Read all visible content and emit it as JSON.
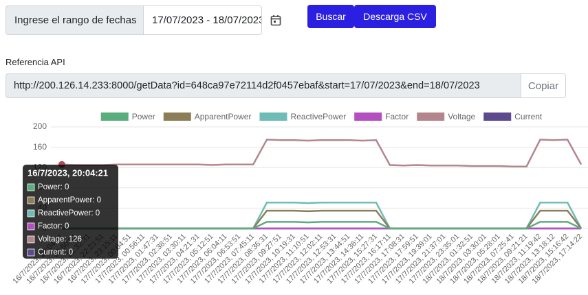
{
  "form": {
    "range_label": "Ingrese el rango de fechas",
    "range_value": "17/07/2023 - 18/07/2023",
    "search_button": "Buscar",
    "csv_button": "Descarga CSV",
    "api_label": "Referencia API",
    "api_url": "http://200.126.14.233:8000/getData?id=648ca97e72114d2f0457ebaf&start=17/07/2023&end=18/07/2023",
    "copy_button": "Copiar"
  },
  "chart_data": {
    "type": "line",
    "categories": [
      "16/7/2023, 20:04:21",
      "16/7/2023, 20:50:01",
      "16/7/2023, 21:32:31",
      "16/7/2023, 22:23:51",
      "16/7/2023, 23:15:11",
      "17/7/2023, 00:04:51",
      "17/7/2023, 00:56:11",
      "17/7/2023, 01:47:31",
      "17/7/2023, 02:38:51",
      "17/7/2023, 03:30:11",
      "17/7/2023, 04:21:31",
      "17/7/2023, 05:12:51",
      "17/7/2023, 06:04:11",
      "17/7/2023, 06:53:51",
      "17/7/2023, 07:45:11",
      "17/7/2023, 08:36:31",
      "17/7/2023, 09:27:51",
      "17/7/2023, 10:19:31",
      "17/7/2023, 11:10:51",
      "17/7/2023, 12:02:11",
      "17/7/2023, 12:53:31",
      "17/7/2023, 13:44:51",
      "17/7/2023, 14:36:11",
      "17/7/2023, 15:27:31",
      "17/7/2023, 16:17:11",
      "17/7/2023, 17:08:31",
      "17/7/2023, 17:59:51",
      "17/7/2023, 19:39:01",
      "17/7/2023, 21:37:01",
      "17/7/2023, 23:35:01",
      "18/7/2023, 01:32:51",
      "18/7/2023, 03:30:01",
      "18/7/2023, 05:28:01",
      "18/7/2023, 07:25:41",
      "18/7/2023, 09:21:21",
      "18/7/2023, 11:19:42",
      "18/7/2023, 13:18:12",
      "18/7/2023, 15:16:42",
      "18/7/2023, 17:14:22"
    ],
    "series": [
      {
        "name": "Power",
        "color": "#5aad7d",
        "values": [
          0,
          0,
          0,
          0,
          0,
          0,
          0,
          0,
          0,
          0,
          0,
          0,
          0,
          0,
          0,
          13,
          13,
          13,
          12,
          13,
          13,
          13,
          13,
          13,
          0,
          0,
          0,
          0,
          0,
          0,
          0,
          0,
          0,
          0,
          0,
          13,
          13,
          13,
          0
        ]
      },
      {
        "name": "ApparentPower",
        "color": "#8b7d56",
        "values": [
          0,
          0,
          0,
          0,
          0,
          0,
          0,
          0,
          0,
          0,
          0,
          0,
          0,
          0,
          0,
          35,
          35,
          35,
          34,
          35,
          35,
          35,
          35,
          35,
          0,
          0,
          0,
          0,
          0,
          0,
          0,
          0,
          0,
          0,
          0,
          35,
          35,
          35,
          0
        ]
      },
      {
        "name": "ReactivePower",
        "color": "#6dbcb6",
        "values": [
          0,
          0,
          0,
          0,
          0,
          0,
          0,
          0,
          0,
          0,
          0,
          0,
          0,
          0,
          0,
          51,
          51,
          51,
          50,
          51,
          51,
          51,
          51,
          51,
          0,
          0,
          0,
          0,
          0,
          0,
          0,
          0,
          0,
          0,
          0,
          51,
          51,
          51,
          0
        ]
      },
      {
        "name": "Factor",
        "color": "#b44fc1",
        "values": [
          0,
          0,
          0,
          0,
          0,
          0,
          0,
          0,
          0,
          0,
          0,
          0,
          0,
          0,
          0,
          0,
          0,
          0,
          0,
          0,
          0,
          0,
          0,
          0,
          0,
          0,
          0,
          0,
          0,
          0,
          0,
          0,
          0,
          0,
          0,
          0,
          0,
          0,
          0
        ]
      },
      {
        "name": "Voltage",
        "color": "#b3868e",
        "values": [
          126,
          125,
          125,
          125,
          126,
          126,
          126,
          126,
          126,
          126,
          126,
          125,
          126,
          126,
          126,
          175,
          174,
          174,
          173,
          174,
          174,
          174,
          173,
          174,
          125,
          124,
          125,
          124,
          124,
          124,
          123,
          123,
          123,
          122,
          122,
          175,
          174,
          175,
          126
        ]
      },
      {
        "name": "Current",
        "color": "#5c4a8c",
        "values": [
          0,
          0,
          0,
          0,
          0,
          0,
          0,
          0,
          0,
          0,
          0,
          0,
          0,
          0,
          0,
          0,
          0,
          0,
          0,
          0,
          0,
          0,
          0,
          0,
          0,
          0,
          0,
          0,
          0,
          0,
          0,
          0,
          0,
          0,
          0,
          0,
          0,
          0,
          0
        ]
      }
    ],
    "ylim": [
      0,
      200
    ],
    "yticks": [
      0,
      40,
      80,
      120,
      160,
      200
    ],
    "grid": true,
    "legend": "top",
    "tooltip": {
      "title": "16/7/2023, 20:04:21",
      "items": [
        "Power: 0",
        "ApparentPower: 0",
        "ReactivePower: 0",
        "Factor: 0",
        "Voltage: 126",
        "Current: 0"
      ]
    }
  }
}
